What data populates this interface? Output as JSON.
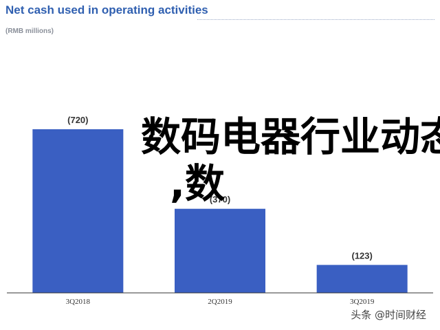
{
  "chart_data": {
    "type": "bar",
    "title": "Net cash used in operating activities",
    "subtitle": "(RMB millions)",
    "categories": [
      "3Q2018",
      "2Q2019",
      "3Q2019"
    ],
    "values": [
      -720,
      -370,
      -123
    ],
    "data_labels": [
      "(720)",
      "(370)",
      "(123)"
    ],
    "ylim": [
      0,
      820
    ],
    "grid": false,
    "bar_color": "#3a5fc2"
  },
  "overlay_text": {
    "line1": "数码电器行业动态",
    "line2": ",数"
  },
  "watermark": "头条 @时间财经"
}
